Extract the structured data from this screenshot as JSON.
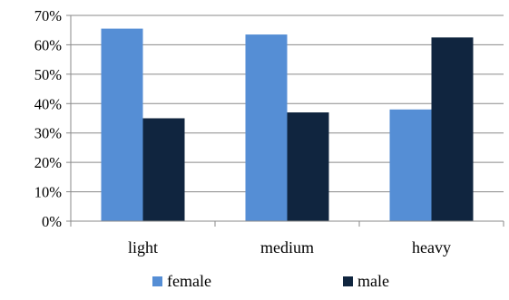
{
  "chart_data": {
    "type": "bar",
    "title": "",
    "xlabel": "",
    "ylabel": "",
    "categories": [
      "light",
      "medium",
      "heavy"
    ],
    "series": [
      {
        "name": "female",
        "values": [
          65.5,
          63.5,
          38
        ],
        "color": "#558ED5"
      },
      {
        "name": "male",
        "values": [
          35,
          37,
          62.5
        ],
        "color": "#10253F"
      }
    ],
    "ylim": [
      0,
      70
    ],
    "yticks": [
      0,
      10,
      20,
      30,
      40,
      50,
      60,
      70
    ],
    "ytick_labels": [
      "0%",
      "10%",
      "20%",
      "30%",
      "40%",
      "50%",
      "60%",
      "70%"
    ],
    "grid": true,
    "legend_position": "bottom"
  }
}
